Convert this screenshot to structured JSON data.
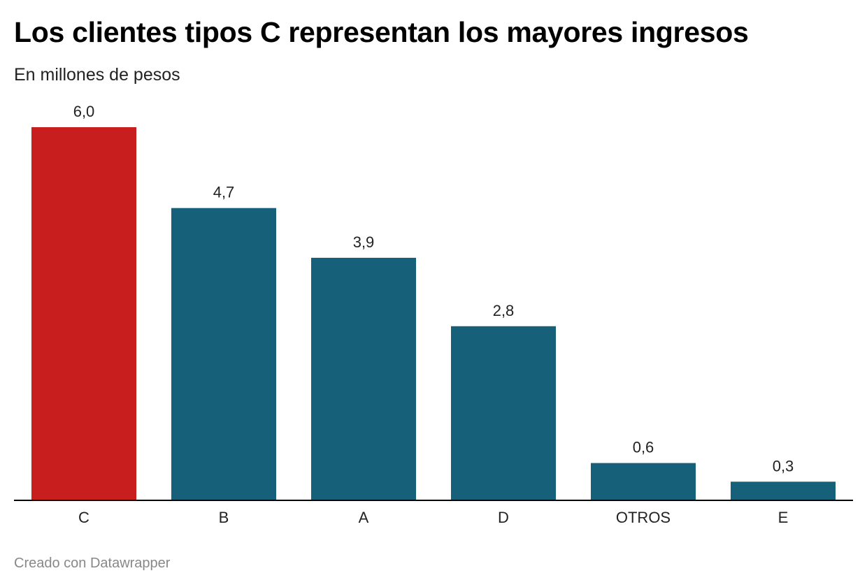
{
  "chart_data": {
    "type": "bar",
    "title": "Los clientes tipos C representan los mayores ingresos",
    "subtitle": "En millones de pesos",
    "categories": [
      "C",
      "B",
      "A",
      "D",
      "OTROS",
      "E"
    ],
    "values": [
      6.0,
      4.7,
      3.9,
      2.8,
      0.6,
      0.3
    ],
    "value_labels": [
      "6,0",
      "4,7",
      "3,9",
      "2,8",
      "0,6",
      "0,3"
    ],
    "highlight_category": "C",
    "colors": {
      "highlight": "#c81e1e",
      "default": "#17607a",
      "baseline": "#000000"
    },
    "ylim": [
      0,
      6.0
    ],
    "grid": false,
    "legend": "none"
  },
  "footer": {
    "credit": "Creado con Datawrapper"
  }
}
